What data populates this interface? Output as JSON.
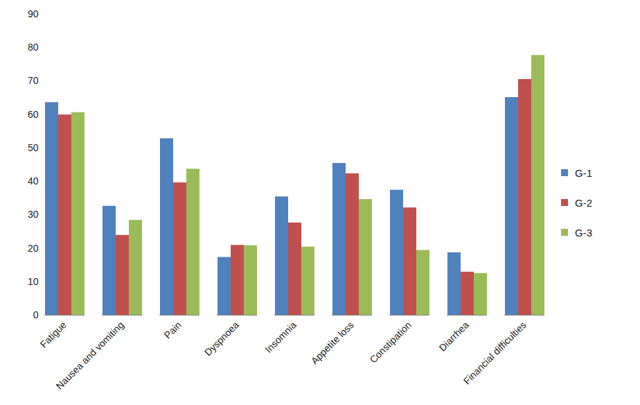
{
  "chart_data": {
    "type": "bar",
    "categories": [
      "Fatigue",
      "Nausea and vomiting",
      "Pain",
      "Dyspnoea",
      "Insomnia",
      "Appetite loss",
      "Constipation",
      "Diarrhea",
      "Financial difficulties"
    ],
    "series": [
      {
        "name": "G-1",
        "color": "#4f81bd",
        "values": [
          63.6,
          32.6,
          52.8,
          17.3,
          35.4,
          45.4,
          37.4,
          18.7,
          65.1
        ]
      },
      {
        "name": "G-2",
        "color": "#c0504d",
        "values": [
          59.9,
          23.9,
          39.6,
          20.9,
          27.6,
          42.3,
          32.1,
          12.9,
          70.5
        ]
      },
      {
        "name": "G-3",
        "color": "#9bbb59",
        "values": [
          60.6,
          28.4,
          43.7,
          20.8,
          20.4,
          34.6,
          19.4,
          12.5,
          77.7
        ]
      }
    ],
    "ylim": [
      0,
      90
    ],
    "yticks": [
      0,
      10,
      20,
      30,
      40,
      50,
      60,
      70,
      80,
      90
    ],
    "grid": false,
    "legend": "right"
  }
}
